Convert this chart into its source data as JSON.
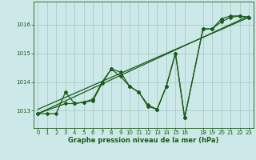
{
  "bg_color": "#cde8e8",
  "line_color": "#1a5c1a",
  "grid_color": "#aacccc",
  "xlabel": "Graphe pression niveau de la mer (hPa)",
  "xlabel_color": "#1a5c1a",
  "ylim": [
    1012.4,
    1016.8
  ],
  "xlim": [
    -0.5,
    23.5
  ],
  "yticks": [
    1013,
    1014,
    1015,
    1016
  ],
  "xticks": [
    0,
    1,
    2,
    3,
    4,
    5,
    6,
    7,
    8,
    9,
    10,
    11,
    12,
    13,
    14,
    15,
    16,
    18,
    19,
    20,
    21,
    22,
    23
  ],
  "series_main": {
    "x": [
      0,
      1,
      2,
      3,
      4,
      5,
      6,
      7,
      8,
      9,
      10,
      11,
      12,
      13,
      14,
      15,
      16,
      18,
      19,
      20,
      21,
      22,
      23
    ],
    "y": [
      1012.9,
      1012.9,
      1012.9,
      1013.65,
      1013.25,
      1013.3,
      1013.4,
      1014.0,
      1014.45,
      1014.2,
      1013.85,
      1013.65,
      1013.15,
      1013.05,
      1013.85,
      1015.0,
      1012.75,
      1015.85,
      1015.85,
      1016.2,
      1016.3,
      1016.3,
      1016.25
    ]
  },
  "series_alt": {
    "x": [
      0,
      3,
      4,
      5,
      6,
      7,
      8,
      9,
      10,
      11,
      12,
      13,
      14,
      15,
      16,
      18,
      19,
      20,
      21,
      22,
      23
    ],
    "y": [
      1012.9,
      1013.25,
      1013.25,
      1013.3,
      1013.35,
      1013.95,
      1014.45,
      1014.35,
      1013.85,
      1013.65,
      1013.2,
      1013.05,
      1013.85,
      1015.0,
      1012.75,
      1015.85,
      1015.85,
      1016.1,
      1016.25,
      1016.3,
      1016.25
    ]
  },
  "trend_line": {
    "x": [
      0,
      23
    ],
    "y": [
      1012.9,
      1016.3
    ]
  },
  "trend_line2": {
    "x": [
      0,
      23
    ],
    "y": [
      1013.05,
      1016.25
    ]
  },
  "marker": "D",
  "markersize": 2.0,
  "linewidth": 0.9,
  "tick_fontsize": 5.0,
  "xlabel_fontsize": 6.0
}
